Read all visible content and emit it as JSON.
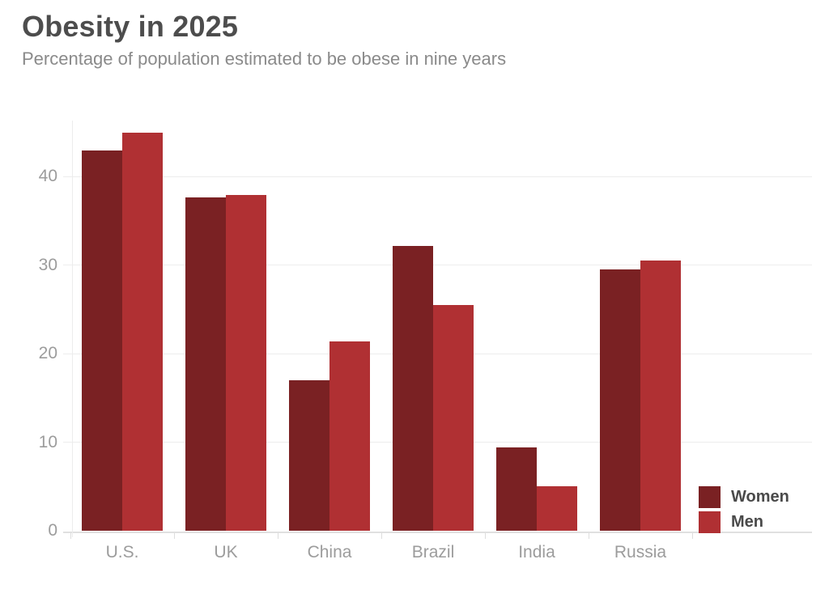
{
  "header": {
    "title": "Obesity in 2025",
    "subtitle": "Percentage of population estimated to be obese in nine years"
  },
  "chart_data": {
    "type": "bar",
    "title": "Obesity in 2025",
    "subtitle": "Percentage of population estimated to be obese in nine years",
    "categories": [
      "U.S.",
      "UK",
      "China",
      "Brazil",
      "India",
      "Russia"
    ],
    "series": [
      {
        "name": "Women",
        "color": "#7a2123",
        "values": [
          43,
          37.7,
          17,
          32.2,
          9.4,
          29.5
        ]
      },
      {
        "name": "Men",
        "color": "#b03033",
        "values": [
          45,
          37.9,
          21.4,
          25.5,
          5,
          30.5
        ]
      }
    ],
    "xlabel": "",
    "ylabel": "",
    "yticks": [
      0,
      10,
      20,
      30,
      40
    ],
    "ylim": [
      0,
      46.5
    ],
    "grid": "horizontal",
    "legend_position": "bottom-right",
    "colors": {
      "title_text": "#4d4d4d",
      "subtitle_text": "#8a8a8a",
      "axis_text": "#9c9c9c",
      "gridline": "#ededed",
      "baseline": "#e0e0e0",
      "legend_text": "#4a4a4a"
    }
  }
}
